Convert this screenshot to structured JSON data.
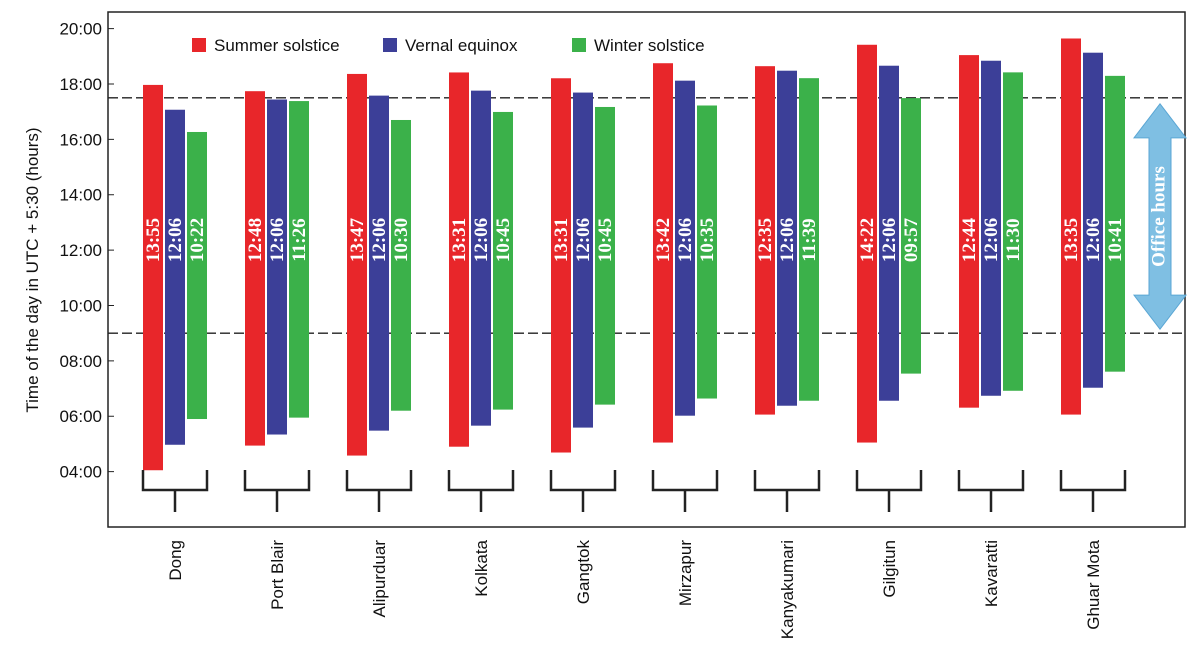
{
  "chart_data": {
    "type": "floating_bar",
    "y_label": "Time of the day in UTC + 5:30 (hours)",
    "categories": [
      "Dong",
      "Port Blair",
      "Alipurduar",
      "Kolkata",
      "Gangtok",
      "Mirzapur",
      "Kanyakumari",
      "Gilgitun",
      "Kavaratti",
      "Ghuar Mota"
    ],
    "series": [
      {
        "name": "Summer solstice",
        "color": "#e8262a",
        "base": [
          4.05,
          4.94,
          4.58,
          4.9,
          4.69,
          5.05,
          6.06,
          5.05,
          6.31,
          6.06
        ],
        "values": [
          13.9167,
          12.8,
          13.7833,
          13.5167,
          13.5167,
          13.7,
          12.5833,
          14.3667,
          12.7333,
          13.5833
        ],
        "value_labels": [
          "13:55",
          "12:48",
          "13:47",
          "13:31",
          "13:31",
          "13:42",
          "12:35",
          "14:22",
          "12:44",
          "13:35"
        ]
      },
      {
        "name": "Vernal equinox",
        "color": "#3c3f98",
        "base": [
          4.97,
          5.34,
          5.48,
          5.66,
          5.59,
          6.02,
          6.38,
          6.56,
          6.74,
          7.03
        ],
        "values": [
          12.1,
          12.1,
          12.1,
          12.1,
          12.1,
          12.1,
          12.1,
          12.1,
          12.1,
          12.1
        ],
        "value_labels": [
          "12:06",
          "12:06",
          "12:06",
          "12:06",
          "12:06",
          "12:06",
          "12:06",
          "12:06",
          "12:06",
          "12:06"
        ]
      },
      {
        "name": "Winter solstice",
        "color": "#3bb14a",
        "base": [
          5.9,
          5.95,
          6.2,
          6.24,
          6.42,
          6.64,
          6.56,
          7.54,
          6.92,
          7.61
        ],
        "values": [
          10.3667,
          11.4333,
          10.5,
          10.75,
          10.75,
          10.5833,
          11.65,
          9.95,
          11.5,
          10.6833
        ],
        "value_labels": [
          "10:22",
          "11:26",
          "10:30",
          "10:45",
          "10:45",
          "10:35",
          "11:39",
          "09:57",
          "11:30",
          "10:41"
        ]
      }
    ],
    "ylim": [
      2,
      20.6
    ],
    "yticks": [
      {
        "value": 4,
        "label": "04:00"
      },
      {
        "value": 6,
        "label": "06:00"
      },
      {
        "value": 8,
        "label": "08:00"
      },
      {
        "value": 10,
        "label": "10:00"
      },
      {
        "value": 12,
        "label": "12:00"
      },
      {
        "value": 14,
        "label": "14:00"
      },
      {
        "value": 16,
        "label": "16:00"
      },
      {
        "value": 18,
        "label": "18:00"
      },
      {
        "value": 20,
        "label": "20:00"
      }
    ],
    "reference_lines": [
      9,
      17.5
    ],
    "annotation": "Office hours",
    "legend": "top"
  }
}
